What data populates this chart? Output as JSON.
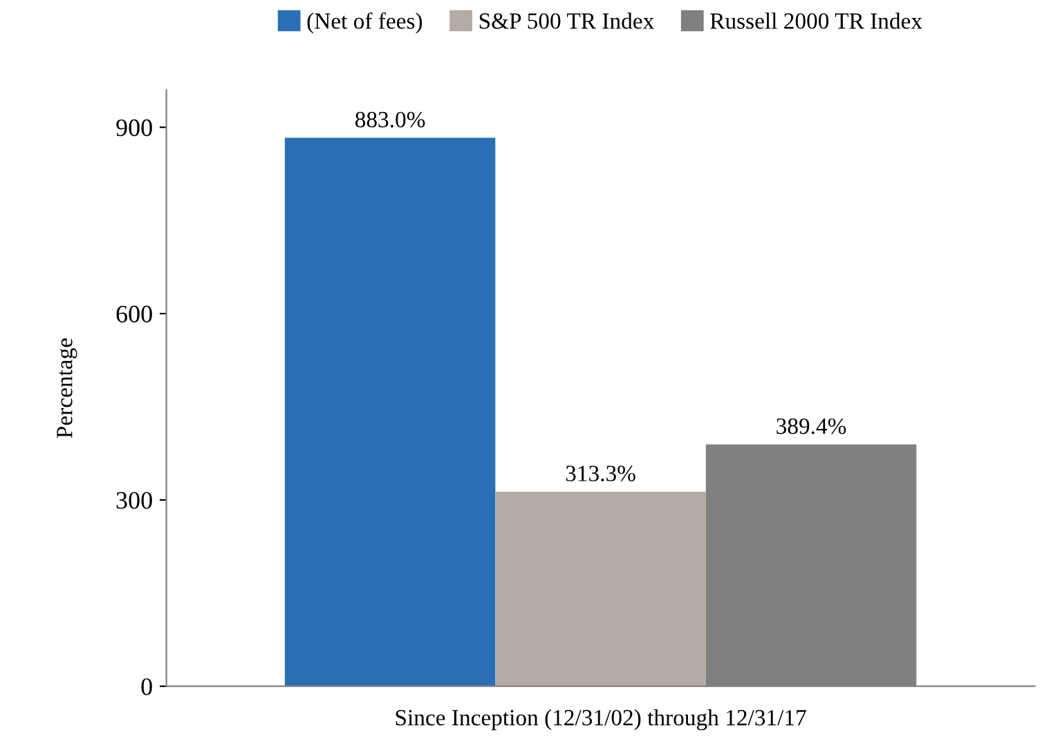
{
  "chart_data": {
    "type": "bar",
    "ylabel": "Percentage",
    "categories": [
      "Since Inception (12/31/02) through 12/31/17"
    ],
    "series": [
      {
        "name": "(Net of fees)",
        "color": "#2a6fb6",
        "values": [
          883.0
        ],
        "value_labels": [
          "883.0%"
        ]
      },
      {
        "name": "S&P 500 TR Index",
        "color": "#b3aba4",
        "values": [
          313.3
        ],
        "value_labels": [
          "313.3%"
        ]
      },
      {
        "name": "Russell 2000 TR Index",
        "color": "#808080",
        "values": [
          389.4
        ],
        "value_labels": [
          "389.4%"
        ]
      }
    ],
    "ylim": [
      0,
      960
    ],
    "yticks": [
      0,
      300,
      600,
      900
    ],
    "grid": false,
    "legend": "top"
  }
}
